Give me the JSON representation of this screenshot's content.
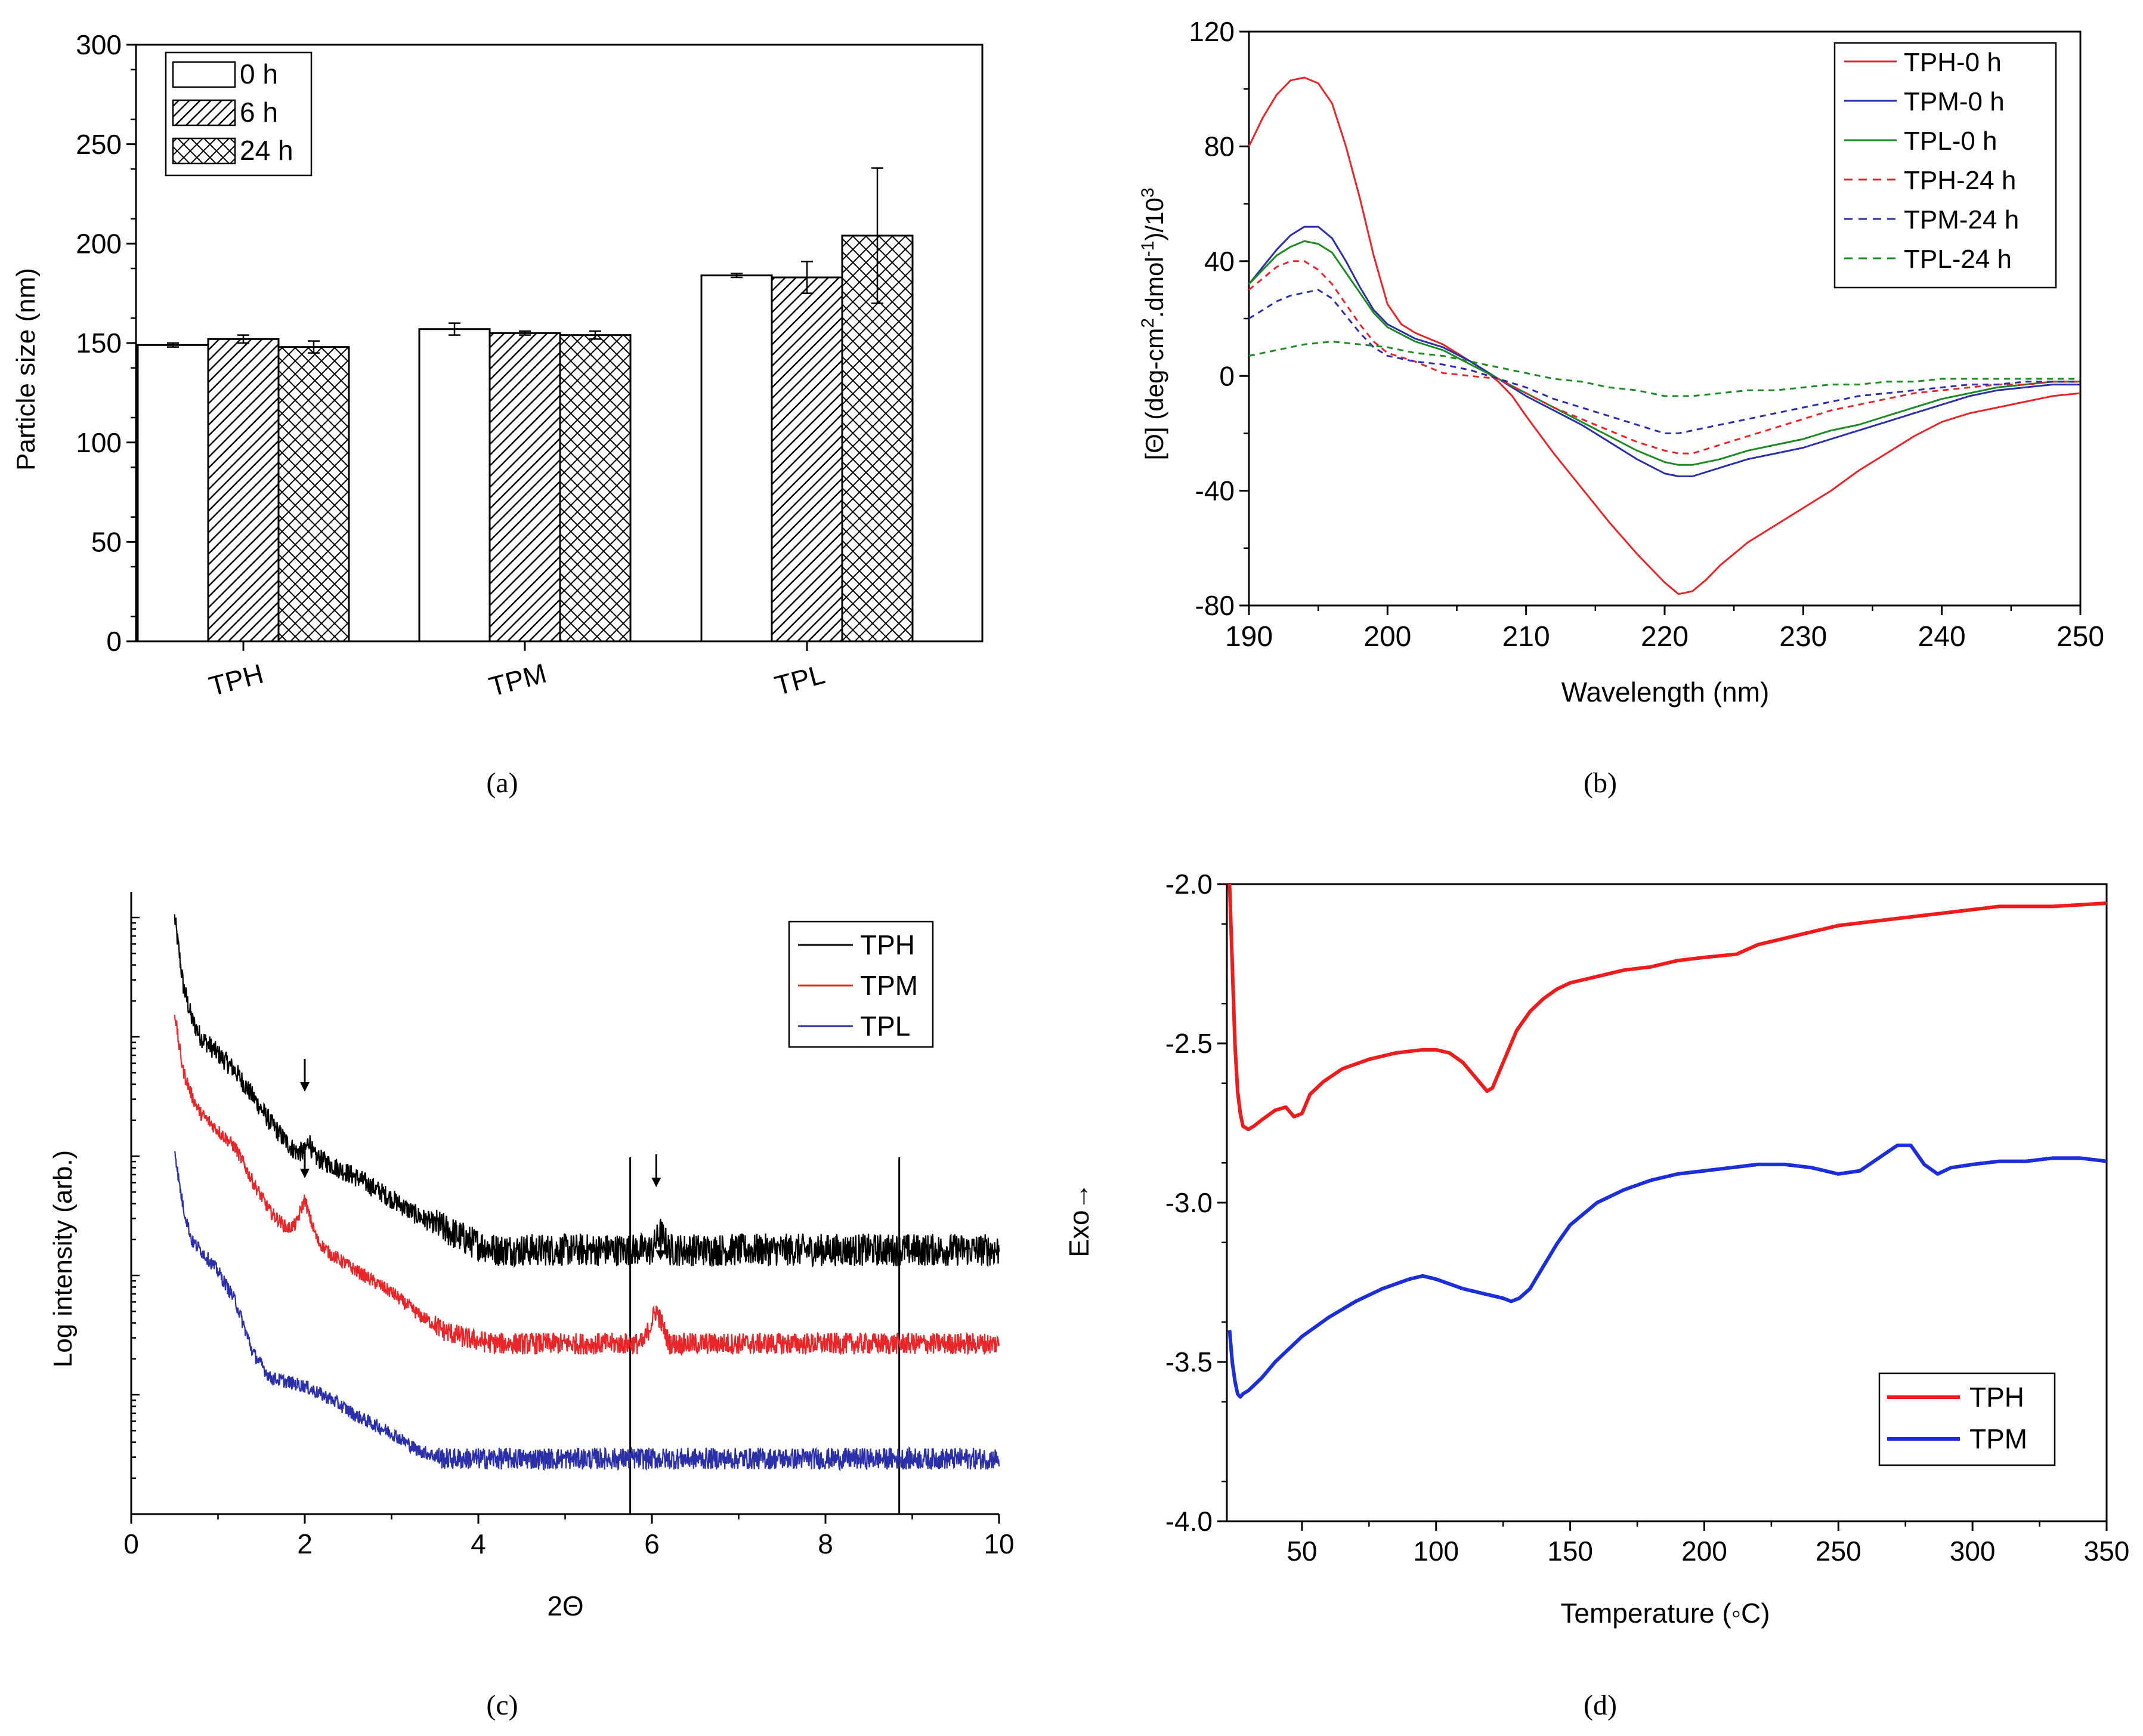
{
  "chart_data": [
    {
      "id": "a",
      "type": "bar",
      "caption": "(a)",
      "title": "",
      "xlabel": "",
      "ylabel": "Particle size (nm)",
      "ylim": [
        0,
        300
      ],
      "yticks": [
        0,
        50,
        100,
        150,
        200,
        250,
        300
      ],
      "categories": [
        "TPH",
        "TPM",
        "TPL"
      ],
      "legend_position": "top-left",
      "series": [
        {
          "name": "0 h",
          "pattern": "open",
          "values": [
            149,
            157,
            184
          ],
          "errors": [
            1,
            3,
            1
          ]
        },
        {
          "name": "6 h",
          "pattern": "hatch",
          "values": [
            152,
            155,
            183
          ],
          "errors": [
            2,
            1,
            8
          ]
        },
        {
          "name": "24 h",
          "pattern": "crosshatch",
          "values": [
            148,
            154,
            204
          ],
          "errors": [
            3,
            2,
            34
          ]
        }
      ]
    },
    {
      "id": "b",
      "type": "line",
      "caption": "(b)",
      "xlabel": "Wavelength (nm)",
      "ylabel": "[Θ] (deg-cm2.dmol-1)/103",
      "ylabel_parts": {
        "a": "[Θ] (deg-cm",
        "sup1": "2",
        "b": ".dmol",
        "sup2": "-1",
        "c": ")/10",
        "sup3": "3"
      },
      "xlim": [
        190,
        250
      ],
      "ylim": [
        -80,
        120
      ],
      "xticks": [
        190,
        200,
        210,
        220,
        230,
        240,
        250
      ],
      "yticks": [
        -80,
        -40,
        0,
        40,
        80,
        120
      ],
      "legend_position": "top-right",
      "series": [
        {
          "name": "TPH-0 h",
          "color": "#e8262a",
          "dash": "solid",
          "x": [
            190,
            191,
            192,
            193,
            194,
            195,
            196,
            197,
            198,
            199,
            200,
            201,
            202,
            203,
            204,
            205,
            206,
            207,
            208,
            209,
            210,
            212,
            214,
            216,
            218,
            220,
            221,
            222,
            223,
            224,
            226,
            228,
            230,
            232,
            234,
            236,
            238,
            240,
            242,
            244,
            246,
            248,
            250
          ],
          "y": [
            80,
            90,
            98,
            103,
            104,
            102,
            95,
            80,
            62,
            42,
            25,
            18,
            15,
            13,
            11,
            8,
            5,
            2,
            -2,
            -7,
            -14,
            -27,
            -39,
            -51,
            -62,
            -72,
            -76,
            -75,
            -71,
            -66,
            -58,
            -52,
            -46,
            -40,
            -33,
            -27,
            -21,
            -16,
            -13,
            -11,
            -9,
            -7,
            -6
          ]
        },
        {
          "name": "TPM-0 h",
          "color": "#2b2fa8",
          "dash": "solid",
          "x": [
            190,
            191,
            192,
            193,
            194,
            195,
            196,
            197,
            198,
            199,
            200,
            202,
            204,
            206,
            208,
            210,
            212,
            214,
            216,
            218,
            220,
            221,
            222,
            224,
            226,
            228,
            230,
            232,
            234,
            236,
            238,
            240,
            242,
            244,
            246,
            248,
            250
          ],
          "y": [
            32,
            38,
            44,
            49,
            52,
            52,
            48,
            40,
            31,
            23,
            18,
            13,
            10,
            5,
            -1,
            -7,
            -12,
            -17,
            -23,
            -29,
            -34,
            -35,
            -35,
            -32,
            -29,
            -27,
            -25,
            -22,
            -19,
            -16,
            -13,
            -10,
            -7,
            -5,
            -4,
            -3,
            -3
          ]
        },
        {
          "name": "TPL-0 h",
          "color": "#1d8a24",
          "dash": "solid",
          "x": [
            190,
            191,
            192,
            193,
            194,
            195,
            196,
            197,
            198,
            199,
            200,
            202,
            204,
            206,
            208,
            210,
            212,
            214,
            216,
            218,
            220,
            221,
            222,
            224,
            226,
            228,
            230,
            232,
            234,
            236,
            238,
            240,
            242,
            244,
            246,
            248,
            250
          ],
          "y": [
            32,
            37,
            42,
            45,
            47,
            46,
            43,
            36,
            29,
            22,
            17,
            12,
            9,
            4,
            -1,
            -6,
            -11,
            -16,
            -21,
            -26,
            -30,
            -31,
            -31,
            -29,
            -26,
            -24,
            -22,
            -19,
            -17,
            -14,
            -11,
            -8,
            -6,
            -4,
            -3,
            -2,
            -2
          ]
        },
        {
          "name": "TPH-24 h",
          "color": "#e8262a",
          "dash": "dashed",
          "x": [
            190,
            191,
            192,
            193,
            194,
            195,
            196,
            197,
            198,
            199,
            200,
            202,
            204,
            206,
            208,
            210,
            212,
            214,
            216,
            218,
            220,
            221,
            222,
            224,
            226,
            228,
            230,
            232,
            234,
            236,
            238,
            240,
            242,
            244,
            246,
            248,
            250
          ],
          "y": [
            30,
            34,
            38,
            40,
            40,
            37,
            32,
            25,
            18,
            12,
            8,
            5,
            1,
            0,
            -1,
            -6,
            -11,
            -15,
            -19,
            -23,
            -26,
            -27,
            -27,
            -24,
            -21,
            -18,
            -15,
            -12,
            -10,
            -8,
            -6,
            -5,
            -4,
            -3,
            -3,
            -2,
            -2
          ]
        },
        {
          "name": "TPM-24 h",
          "color": "#2b2fa8",
          "dash": "dashed",
          "x": [
            190,
            191,
            192,
            193,
            194,
            195,
            196,
            197,
            198,
            199,
            200,
            202,
            204,
            206,
            208,
            210,
            212,
            214,
            216,
            218,
            220,
            221,
            222,
            224,
            226,
            228,
            230,
            232,
            234,
            236,
            238,
            240,
            242,
            244,
            246,
            248,
            250
          ],
          "y": [
            20,
            23,
            26,
            28,
            29,
            30,
            27,
            21,
            15,
            10,
            7,
            5,
            4,
            2,
            -1,
            -4,
            -8,
            -11,
            -14,
            -17,
            -20,
            -20,
            -19,
            -17,
            -15,
            -13,
            -11,
            -9,
            -7,
            -6,
            -5,
            -4,
            -3,
            -3,
            -2,
            -2,
            -2
          ]
        },
        {
          "name": "TPL-24 h",
          "color": "#1d8a24",
          "dash": "dashed",
          "x": [
            190,
            192,
            194,
            196,
            198,
            200,
            202,
            204,
            206,
            208,
            210,
            212,
            214,
            216,
            218,
            220,
            222,
            224,
            226,
            228,
            230,
            232,
            234,
            236,
            238,
            240,
            242,
            244,
            246,
            248,
            250
          ],
          "y": [
            7,
            9,
            11,
            12,
            11,
            10,
            8,
            7,
            5,
            3,
            1,
            -1,
            -2,
            -4,
            -5,
            -7,
            -7,
            -6,
            -5,
            -5,
            -4,
            -3,
            -3,
            -2,
            -2,
            -1,
            -1,
            -1,
            -1,
            -1,
            -1
          ]
        }
      ]
    },
    {
      "id": "c",
      "type": "line",
      "caption": "(c)",
      "xlabel": "2Θ",
      "ylabel": "Log intensity (arb.)",
      "xlim": [
        0,
        10
      ],
      "xticks": [
        0,
        2,
        4,
        6,
        8,
        10
      ],
      "y_scale": "log (arbitrary units, no tick labels)",
      "legend_position": "top-right",
      "annotations": [
        "downward arrows marking peaks near 2Θ = 2.0 and 6.1",
        "vertical reference lines at 2Θ = 5.75 and 8.85"
      ],
      "vlines": [
        5.75,
        8.85
      ],
      "series": [
        {
          "name": "TPH",
          "color": "#000000",
          "x": [
            0.5,
            0.55,
            0.6,
            0.7,
            0.8,
            1.0,
            1.2,
            1.4,
            1.6,
            1.8,
            1.9,
            2.0,
            2.05,
            2.1,
            2.3,
            2.6,
            3.0,
            3.3,
            3.6,
            3.9,
            4.2,
            5.0,
            6.0,
            6.1,
            6.2,
            7.0,
            8.0,
            9.0,
            10.0
          ],
          "y": [
            10.0,
            9.6,
            9.2,
            8.8,
            8.6,
            8.4,
            8.2,
            7.9,
            7.6,
            7.35,
            7.25,
            7.25,
            7.4,
            7.2,
            7.1,
            6.95,
            6.7,
            6.5,
            6.35,
            6.2,
            6.1,
            6.1,
            6.1,
            6.3,
            6.1,
            6.1,
            6.1,
            6.1,
            6.1
          ],
          "noise": 0.12
        },
        {
          "name": "TPM",
          "color": "#e8262a",
          "x": [
            0.5,
            0.55,
            0.6,
            0.7,
            0.8,
            1.0,
            1.2,
            1.4,
            1.6,
            1.8,
            1.9,
            2.0,
            2.05,
            2.15,
            2.3,
            2.6,
            3.0,
            3.3,
            3.6,
            3.9,
            4.2,
            5.0,
            5.9,
            6.05,
            6.2,
            7.0,
            8.0,
            9.0,
            10.0
          ],
          "y": [
            8.9,
            8.5,
            8.2,
            7.9,
            7.7,
            7.5,
            7.3,
            6.9,
            6.55,
            6.35,
            6.4,
            6.7,
            6.5,
            6.2,
            6.05,
            5.85,
            5.6,
            5.35,
            5.15,
            5.05,
            5.0,
            5.0,
            5.0,
            5.4,
            5.0,
            5.0,
            5.0,
            5.0,
            5.0
          ],
          "noise": 0.08
        },
        {
          "name": "TPL",
          "color": "#2b2fa8",
          "x": [
            0.5,
            0.55,
            0.6,
            0.7,
            0.8,
            1.0,
            1.2,
            1.4,
            1.6,
            1.8,
            2.0,
            2.3,
            2.6,
            3.0,
            3.3,
            3.6,
            4.0,
            5.0,
            6.0,
            7.0,
            8.0,
            9.0,
            10.0
          ],
          "y": [
            7.3,
            6.9,
            6.6,
            6.2,
            6.1,
            5.85,
            5.5,
            4.9,
            4.6,
            4.55,
            4.5,
            4.35,
            4.15,
            3.95,
            3.75,
            3.65,
            3.65,
            3.65,
            3.65,
            3.65,
            3.65,
            3.65,
            3.65
          ],
          "noise": 0.08
        }
      ]
    },
    {
      "id": "d",
      "type": "line",
      "caption": "(d)",
      "xlabel": "Temperature (◦C)",
      "ylabel": "Exo→",
      "xlim": [
        22,
        350
      ],
      "ylim": [
        -4.0,
        -2.0
      ],
      "xticks": [
        50,
        100,
        150,
        200,
        250,
        300,
        350
      ],
      "yticks": [
        -4.0,
        -3.5,
        -3.0,
        -2.5,
        -2.0
      ],
      "ytick_labels": [
        "-4.0",
        "-3.5",
        "-3.0",
        "-2.5",
        "-2.0"
      ],
      "legend_position": "bottom-right",
      "series": [
        {
          "name": "TPH",
          "color": "#ee1c1c",
          "x": [
            23,
            24,
            25,
            26,
            27,
            28,
            30,
            32,
            35,
            40,
            44,
            47,
            50,
            53,
            58,
            65,
            75,
            85,
            95,
            100,
            105,
            110,
            115,
            119,
            121,
            125,
            130,
            135,
            140,
            145,
            150,
            160,
            170,
            180,
            190,
            200,
            212,
            220,
            235,
            250,
            270,
            290,
            310,
            330,
            350
          ],
          "y": [
            -2.0,
            -2.25,
            -2.5,
            -2.65,
            -2.72,
            -2.76,
            -2.77,
            -2.76,
            -2.74,
            -2.71,
            -2.7,
            -2.73,
            -2.72,
            -2.66,
            -2.62,
            -2.58,
            -2.55,
            -2.53,
            -2.52,
            -2.52,
            -2.53,
            -2.56,
            -2.61,
            -2.65,
            -2.64,
            -2.56,
            -2.46,
            -2.4,
            -2.36,
            -2.33,
            -2.31,
            -2.29,
            -2.27,
            -2.26,
            -2.24,
            -2.23,
            -2.22,
            -2.19,
            -2.16,
            -2.13,
            -2.11,
            -2.09,
            -2.07,
            -2.07,
            -2.06
          ]
        },
        {
          "name": "TPM",
          "color": "#1c2ed8",
          "x": [
            23,
            24,
            25,
            26,
            27,
            28,
            30,
            35,
            40,
            50,
            60,
            70,
            80,
            90,
            95,
            100,
            110,
            120,
            125,
            128,
            131,
            135,
            140,
            145,
            150,
            160,
            170,
            180,
            190,
            200,
            210,
            220,
            230,
            240,
            250,
            258,
            265,
            272,
            277,
            282,
            287,
            292,
            300,
            310,
            320,
            330,
            340,
            350
          ],
          "y": [
            -3.4,
            -3.5,
            -3.56,
            -3.6,
            -3.61,
            -3.6,
            -3.59,
            -3.55,
            -3.5,
            -3.42,
            -3.36,
            -3.31,
            -3.27,
            -3.24,
            -3.23,
            -3.24,
            -3.27,
            -3.29,
            -3.3,
            -3.31,
            -3.3,
            -3.27,
            -3.2,
            -3.13,
            -3.07,
            -3.0,
            -2.96,
            -2.93,
            -2.91,
            -2.9,
            -2.89,
            -2.88,
            -2.88,
            -2.89,
            -2.91,
            -2.9,
            -2.86,
            -2.82,
            -2.82,
            -2.88,
            -2.91,
            -2.89,
            -2.88,
            -2.87,
            -2.87,
            -2.86,
            -2.86,
            -2.87
          ]
        }
      ]
    }
  ]
}
